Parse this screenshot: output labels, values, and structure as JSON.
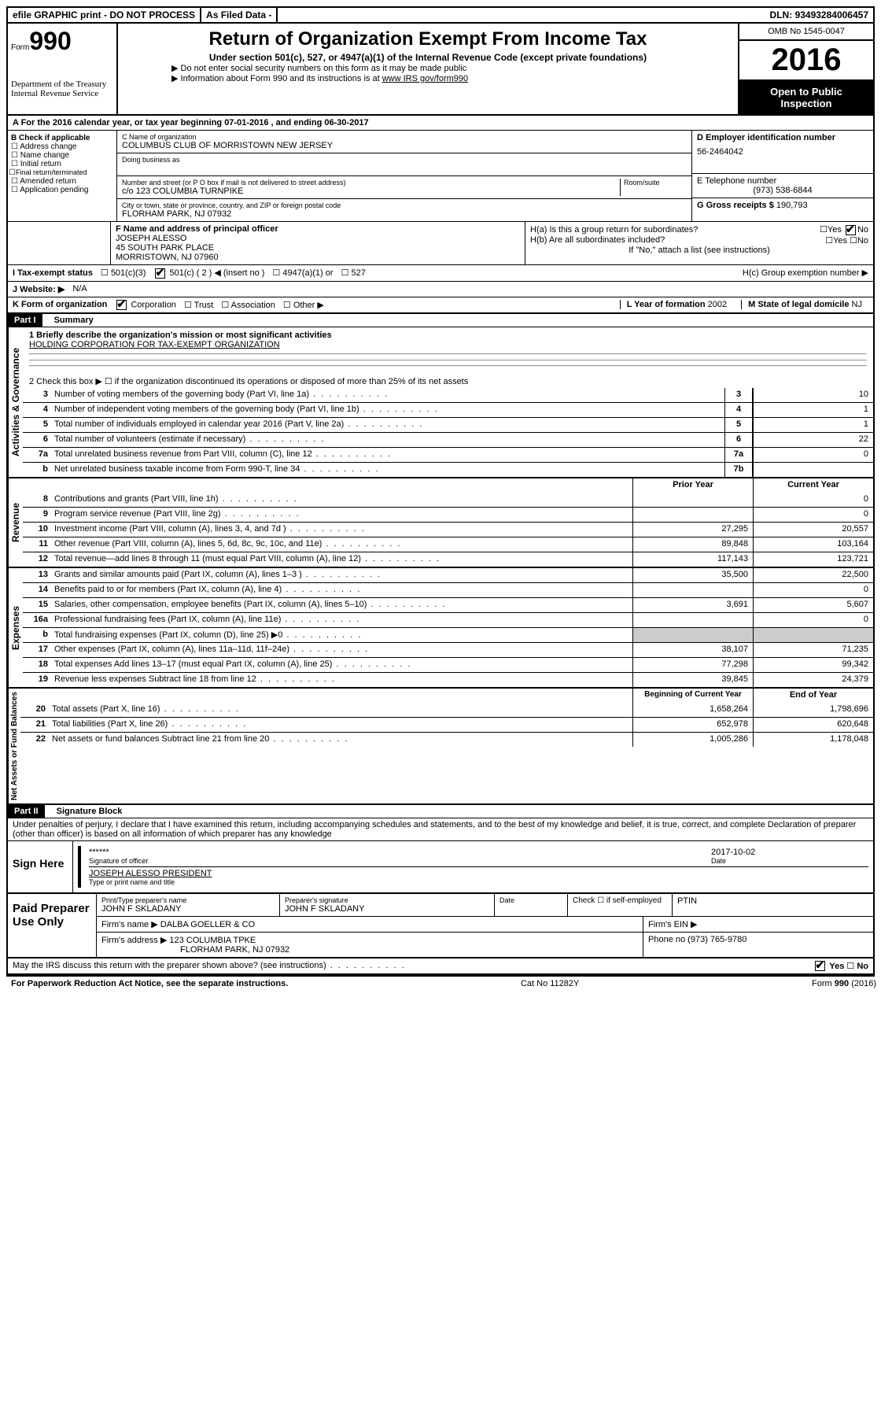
{
  "top_bar": {
    "efile": "efile GRAPHIC print - DO NOT PROCESS",
    "as_filed": "As Filed Data -",
    "dln_label": "DLN:",
    "dln": "93493284006457"
  },
  "header": {
    "form_label": "Form",
    "form_no": "990",
    "dept": "Department of the Treasury",
    "irs": "Internal Revenue Service",
    "title": "Return of Organization Exempt From Income Tax",
    "subtitle": "Under section 501(c), 527, or 4947(a)(1) of the Internal Revenue Code (except private foundations)",
    "note1": "▶ Do not enter social security numbers on this form as it may be made public",
    "note2_prefix": "▶ Information about Form 990 and its instructions is at ",
    "note2_link": "www IRS gov/form990",
    "omb": "OMB No 1545-0047",
    "year": "2016",
    "open": "Open to Public Inspection"
  },
  "section_a": "A  For the 2016 calendar year, or tax year beginning 07-01-2016  , and ending 06-30-2017",
  "section_b": {
    "label": "B Check if applicable",
    "opts": [
      "Address change",
      "Name change",
      "Initial return",
      "Final return/terminated",
      "Amended return",
      "Application pending"
    ]
  },
  "section_c": {
    "name_label": "C Name of organization",
    "name": "COLUMBUS CLUB OF MORRISTOWN NEW JERSEY",
    "dba_label": "Doing business as",
    "addr_label": "Number and street (or P O  box if mail is not delivered to street address)",
    "room_label": "Room/suite",
    "addr": "c/o 123 COLUMBIA TURNPIKE",
    "city_label": "City or town, state or province, country, and ZIP or foreign postal code",
    "city": "FLORHAM PARK, NJ  07932"
  },
  "section_d": {
    "ein_label": "D Employer identification number",
    "ein": "56-2464042",
    "tel_label": "E Telephone number",
    "tel": "(973) 538-6844",
    "gross_label": "G Gross receipts $",
    "gross": "190,793"
  },
  "section_f": {
    "label": "F  Name and address of principal officer",
    "name": "JOSEPH ALESSO",
    "addr1": "45 SOUTH PARK PLACE",
    "addr2": "MORRISTOWN, NJ  07960"
  },
  "section_h": {
    "ha": "H(a)  Is this a group return for subordinates?",
    "hb": "H(b)  Are all subordinates included?",
    "hb_note": "If \"No,\" attach a list  (see instructions)",
    "hc": "H(c)  Group exemption number ▶"
  },
  "section_i": {
    "label": "I  Tax-exempt status",
    "opt1": "501(c)(3)",
    "opt2": "501(c) ( 2 ) ◀ (insert no )",
    "opt3": "4947(a)(1) or",
    "opt4": "527"
  },
  "section_j": {
    "label": "J  Website: ▶",
    "val": "N/A"
  },
  "section_k": {
    "label": "K Form of organization",
    "opts": [
      "Corporation",
      "Trust",
      "Association",
      "Other ▶"
    ],
    "l_label": "L Year of formation",
    "l_val": "2002",
    "m_label": "M State of legal domicile",
    "m_val": "NJ"
  },
  "part1": {
    "title": "Part I",
    "name": "Summary",
    "line1_label": "1 Briefly describe the organization's mission or most significant activities",
    "line1_val": "HOLDING CORPORATION FOR TAX-EXEMPT ORGANIZATION",
    "line2": "2  Check this box ▶ ☐  if the organization discontinued its operations or disposed of more than 25% of its net assets",
    "governance_rows": [
      {
        "n": "3",
        "desc": "Number of voting members of the governing body (Part VI, line 1a)",
        "key": "3",
        "val": "10"
      },
      {
        "n": "4",
        "desc": "Number of independent voting members of the governing body (Part VI, line 1b)",
        "key": "4",
        "val": "1"
      },
      {
        "n": "5",
        "desc": "Total number of individuals employed in calendar year 2016 (Part V, line 2a)",
        "key": "5",
        "val": "1"
      },
      {
        "n": "6",
        "desc": "Total number of volunteers (estimate if necessary)",
        "key": "6",
        "val": "22"
      },
      {
        "n": "7a",
        "desc": "Total unrelated business revenue from Part VIII, column (C), line 12",
        "key": "7a",
        "val": "0"
      },
      {
        "n": "b",
        "desc": "Net unrelated business taxable income from Form 990-T, line 34",
        "key": "7b",
        "val": ""
      }
    ],
    "col_prior": "Prior Year",
    "col_current": "Current Year",
    "revenue_rows": [
      {
        "n": "8",
        "desc": "Contributions and grants (Part VIII, line 1h)",
        "prior": "",
        "curr": "0"
      },
      {
        "n": "9",
        "desc": "Program service revenue (Part VIII, line 2g)",
        "prior": "",
        "curr": "0"
      },
      {
        "n": "10",
        "desc": "Investment income (Part VIII, column (A), lines 3, 4, and 7d )",
        "prior": "27,295",
        "curr": "20,557"
      },
      {
        "n": "11",
        "desc": "Other revenue (Part VIII, column (A), lines 5, 6d, 8c, 9c, 10c, and 11e)",
        "prior": "89,848",
        "curr": "103,164"
      },
      {
        "n": "12",
        "desc": "Total revenue—add lines 8 through 11 (must equal Part VIII, column (A), line 12)",
        "prior": "117,143",
        "curr": "123,721"
      }
    ],
    "expense_rows": [
      {
        "n": "13",
        "desc": "Grants and similar amounts paid (Part IX, column (A), lines 1–3 )",
        "prior": "35,500",
        "curr": "22,500"
      },
      {
        "n": "14",
        "desc": "Benefits paid to or for members (Part IX, column (A), line 4)",
        "prior": "",
        "curr": "0"
      },
      {
        "n": "15",
        "desc": "Salaries, other compensation, employee benefits (Part IX, column (A), lines 5–10)",
        "prior": "3,691",
        "curr": "5,607"
      },
      {
        "n": "16a",
        "desc": "Professional fundraising fees (Part IX, column (A), line 11e)",
        "prior": "",
        "curr": "0"
      },
      {
        "n": "b",
        "desc": "Total fundraising expenses (Part IX, column (D), line 25) ▶0",
        "prior": "",
        "curr": "",
        "shaded": true
      },
      {
        "n": "17",
        "desc": "Other expenses (Part IX, column (A), lines 11a–11d, 11f–24e)",
        "prior": "38,107",
        "curr": "71,235"
      },
      {
        "n": "18",
        "desc": "Total expenses  Add lines 13–17 (must equal Part IX, column (A), line 25)",
        "prior": "77,298",
        "curr": "99,342"
      },
      {
        "n": "19",
        "desc": "Revenue less expenses  Subtract line 18 from line 12",
        "prior": "39,845",
        "curr": "24,379"
      }
    ],
    "col_begin": "Beginning of Current Year",
    "col_end": "End of Year",
    "asset_rows": [
      {
        "n": "20",
        "desc": "Total assets (Part X, line 16)",
        "prior": "1,658,264",
        "curr": "1,798,696"
      },
      {
        "n": "21",
        "desc": "Total liabilities (Part X, line 26)",
        "prior": "652,978",
        "curr": "620,648"
      },
      {
        "n": "22",
        "desc": "Net assets or fund balances  Subtract line 21 from line 20",
        "prior": "1,005,286",
        "curr": "1,178,048"
      }
    ],
    "vlabel_gov": "Activities & Governance",
    "vlabel_rev": "Revenue",
    "vlabel_exp": "Expenses",
    "vlabel_net": "Net Assets or Fund Balances"
  },
  "part2": {
    "title": "Part II",
    "name": "Signature Block",
    "declaration": "Under penalties of perjury, I declare that I have examined this return, including accompanying schedules and statements, and to the best of my knowledge and belief, it is true, correct, and complete  Declaration of preparer (other than officer) is based on all information of which preparer has any knowledge",
    "sign_here": "Sign Here",
    "stars": "******",
    "sig_officer": "Signature of officer",
    "date": "2017-10-02",
    "date_label": "Date",
    "officer_name": "JOSEPH ALESSO PRESIDENT",
    "officer_label": "Type or print name and title",
    "paid": "Paid Preparer Use Only",
    "prep_name_label": "Print/Type preparer's name",
    "prep_name": "JOHN F SKLADANY",
    "prep_sig_label": "Preparer's signature",
    "prep_sig": "JOHN F SKLADANY",
    "prep_date_label": "Date",
    "check_label": "Check ☐ if self-employed",
    "ptin_label": "PTIN",
    "firm_name_label": "Firm's name   ▶",
    "firm_name": "DALBA GOELLER & CO",
    "firm_ein_label": "Firm's EIN ▶",
    "firm_addr_label": "Firm's address ▶",
    "firm_addr": "123 COLUMBIA TPKE",
    "firm_city": "FLORHAM PARK, NJ  07932",
    "phone_label": "Phone no",
    "phone": "(973) 765-9780",
    "discuss": "May the IRS discuss this return with the preparer shown above? (see instructions)",
    "yes": "Yes",
    "no": "No"
  },
  "footer": {
    "left": "For Paperwork Reduction Act Notice, see the separate instructions.",
    "center": "Cat  No  11282Y",
    "right": "Form 990 (2016)"
  }
}
